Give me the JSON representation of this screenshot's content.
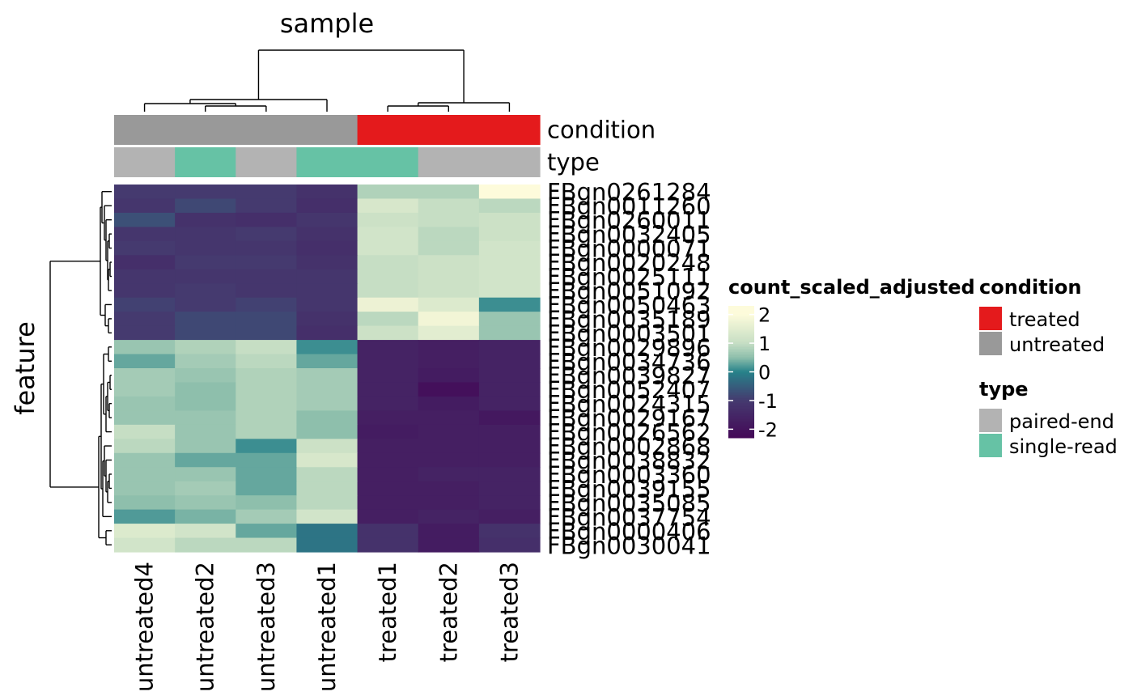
{
  "chart_data": {
    "type": "heatmap",
    "title": "sample",
    "xlabel": "",
    "ylabel": "feature",
    "samples": [
      "untreated4",
      "untreated2",
      "untreated3",
      "untreated1",
      "treated1",
      "treated2",
      "treated3"
    ],
    "features": [
      "FBgn0261284",
      "FBgn0011260",
      "FBgn0260011",
      "FBgn0032405",
      "FBgn0000071",
      "FBgn0020248",
      "FBgn0025111",
      "FBgn0051092",
      "FBgn0050463",
      "FBgn0035189",
      "FBgn0003501",
      "FBgn0029896",
      "FBgn0034736",
      "FBgn0039827",
      "FBgn0052407",
      "FBgn0024315",
      "FBgn0029167",
      "FBgn0026562",
      "FBgn0002868",
      "FBgn0038832",
      "FBgn0003360",
      "FBgn0039155",
      "FBgn0035085",
      "FBgn0037754",
      "FBgn0000406",
      "FBgn0030041"
    ],
    "values": [
      [
        -1.0,
        -1.0,
        -1.0,
        -1.2,
        0.8,
        0.8,
        2.0
      ],
      [
        -1.1,
        -0.8,
        -1.0,
        -1.3,
        1.3,
        1.0,
        0.9
      ],
      [
        -0.7,
        -1.2,
        -1.3,
        -1.1,
        1.1,
        1.0,
        1.1
      ],
      [
        -1.1,
        -1.1,
        -1.0,
        -1.2,
        1.2,
        0.9,
        1.1
      ],
      [
        -1.0,
        -1.1,
        -1.1,
        -1.3,
        1.2,
        0.9,
        1.2
      ],
      [
        -1.3,
        -1.0,
        -1.0,
        -1.2,
        1.0,
        1.1,
        1.2
      ],
      [
        -1.1,
        -1.1,
        -1.1,
        -1.1,
        1.0,
        1.1,
        1.2
      ],
      [
        -1.1,
        -1.0,
        -1.1,
        -1.1,
        1.0,
        1.1,
        1.2
      ],
      [
        -0.9,
        -1.0,
        -0.9,
        -1.1,
        1.7,
        1.4,
        0.1
      ],
      [
        -1.0,
        -0.8,
        -0.8,
        -1.2,
        0.9,
        1.8,
        0.6
      ],
      [
        -1.0,
        -0.8,
        -0.8,
        -1.3,
        1.1,
        1.5,
        0.6
      ],
      [
        0.6,
        0.8,
        1.0,
        0.1,
        -1.6,
        -1.7,
        -1.6
      ],
      [
        0.3,
        0.7,
        0.9,
        0.3,
        -1.6,
        -1.7,
        -1.6
      ],
      [
        0.7,
        0.6,
        0.8,
        0.7,
        -1.6,
        -1.8,
        -1.6
      ],
      [
        0.7,
        0.5,
        0.8,
        0.7,
        -1.6,
        -2.1,
        -1.6
      ],
      [
        0.6,
        0.5,
        0.8,
        0.7,
        -1.6,
        -1.8,
        -1.6
      ],
      [
        0.6,
        0.6,
        0.8,
        0.5,
        -1.7,
        -1.7,
        -1.9
      ],
      [
        1.0,
        0.6,
        0.8,
        0.5,
        -1.8,
        -1.7,
        -1.7
      ],
      [
        0.9,
        0.6,
        0.1,
        1.1,
        -1.7,
        -1.7,
        -1.7
      ],
      [
        0.6,
        0.3,
        0.3,
        1.3,
        -1.7,
        -1.7,
        -1.7
      ],
      [
        0.6,
        0.6,
        0.3,
        0.9,
        -1.7,
        -1.6,
        -1.6
      ],
      [
        0.6,
        0.7,
        0.3,
        0.9,
        -1.7,
        -1.7,
        -1.6
      ],
      [
        0.5,
        0.6,
        0.5,
        0.9,
        -1.7,
        -1.7,
        -1.6
      ],
      [
        0.2,
        0.4,
        0.7,
        1.2,
        -1.7,
        -1.6,
        -1.7
      ],
      [
        1.4,
        1.2,
        0.3,
        -0.2,
        -1.2,
        -1.8,
        -1.2
      ],
      [
        1.2,
        0.9,
        0.9,
        -0.2,
        -1.2,
        -1.8,
        -1.3
      ]
    ],
    "colorscale": {
      "name": "count_scaled_adjusted",
      "stops": [
        {
          "v": -2.5,
          "c": "#440154"
        },
        {
          "v": -1.0,
          "c": "#453a6f"
        },
        {
          "v": 0.0,
          "c": "#27828a"
        },
        {
          "v": 0.5,
          "c": "#8ebfac"
        },
        {
          "v": 1.0,
          "c": "#c6dec4"
        },
        {
          "v": 2.0,
          "c": "#fdfbdb"
        }
      ],
      "ticks": [
        2,
        1,
        0,
        -1,
        -2
      ],
      "tick_labels": [
        "2",
        "1",
        "0",
        "-1",
        "-2"
      ]
    },
    "annotations": [
      {
        "name": "condition",
        "values": [
          "untreated",
          "untreated",
          "untreated",
          "untreated",
          "treated",
          "treated",
          "treated"
        ],
        "legend": [
          {
            "label": "treated",
            "color": "#e41a1c"
          },
          {
            "label": "untreated",
            "color": "#999999"
          }
        ]
      },
      {
        "name": "type",
        "values": [
          "paired-end",
          "single-read",
          "paired-end",
          "single-read",
          "single-read",
          "paired-end",
          "paired-end"
        ],
        "legend": [
          {
            "label": "paired-end",
            "color": "#b3b3b3"
          },
          {
            "label": "single-read",
            "color": "#66c2a5"
          }
        ]
      }
    ],
    "column_dendrogram": true,
    "row_dendrogram": true
  }
}
